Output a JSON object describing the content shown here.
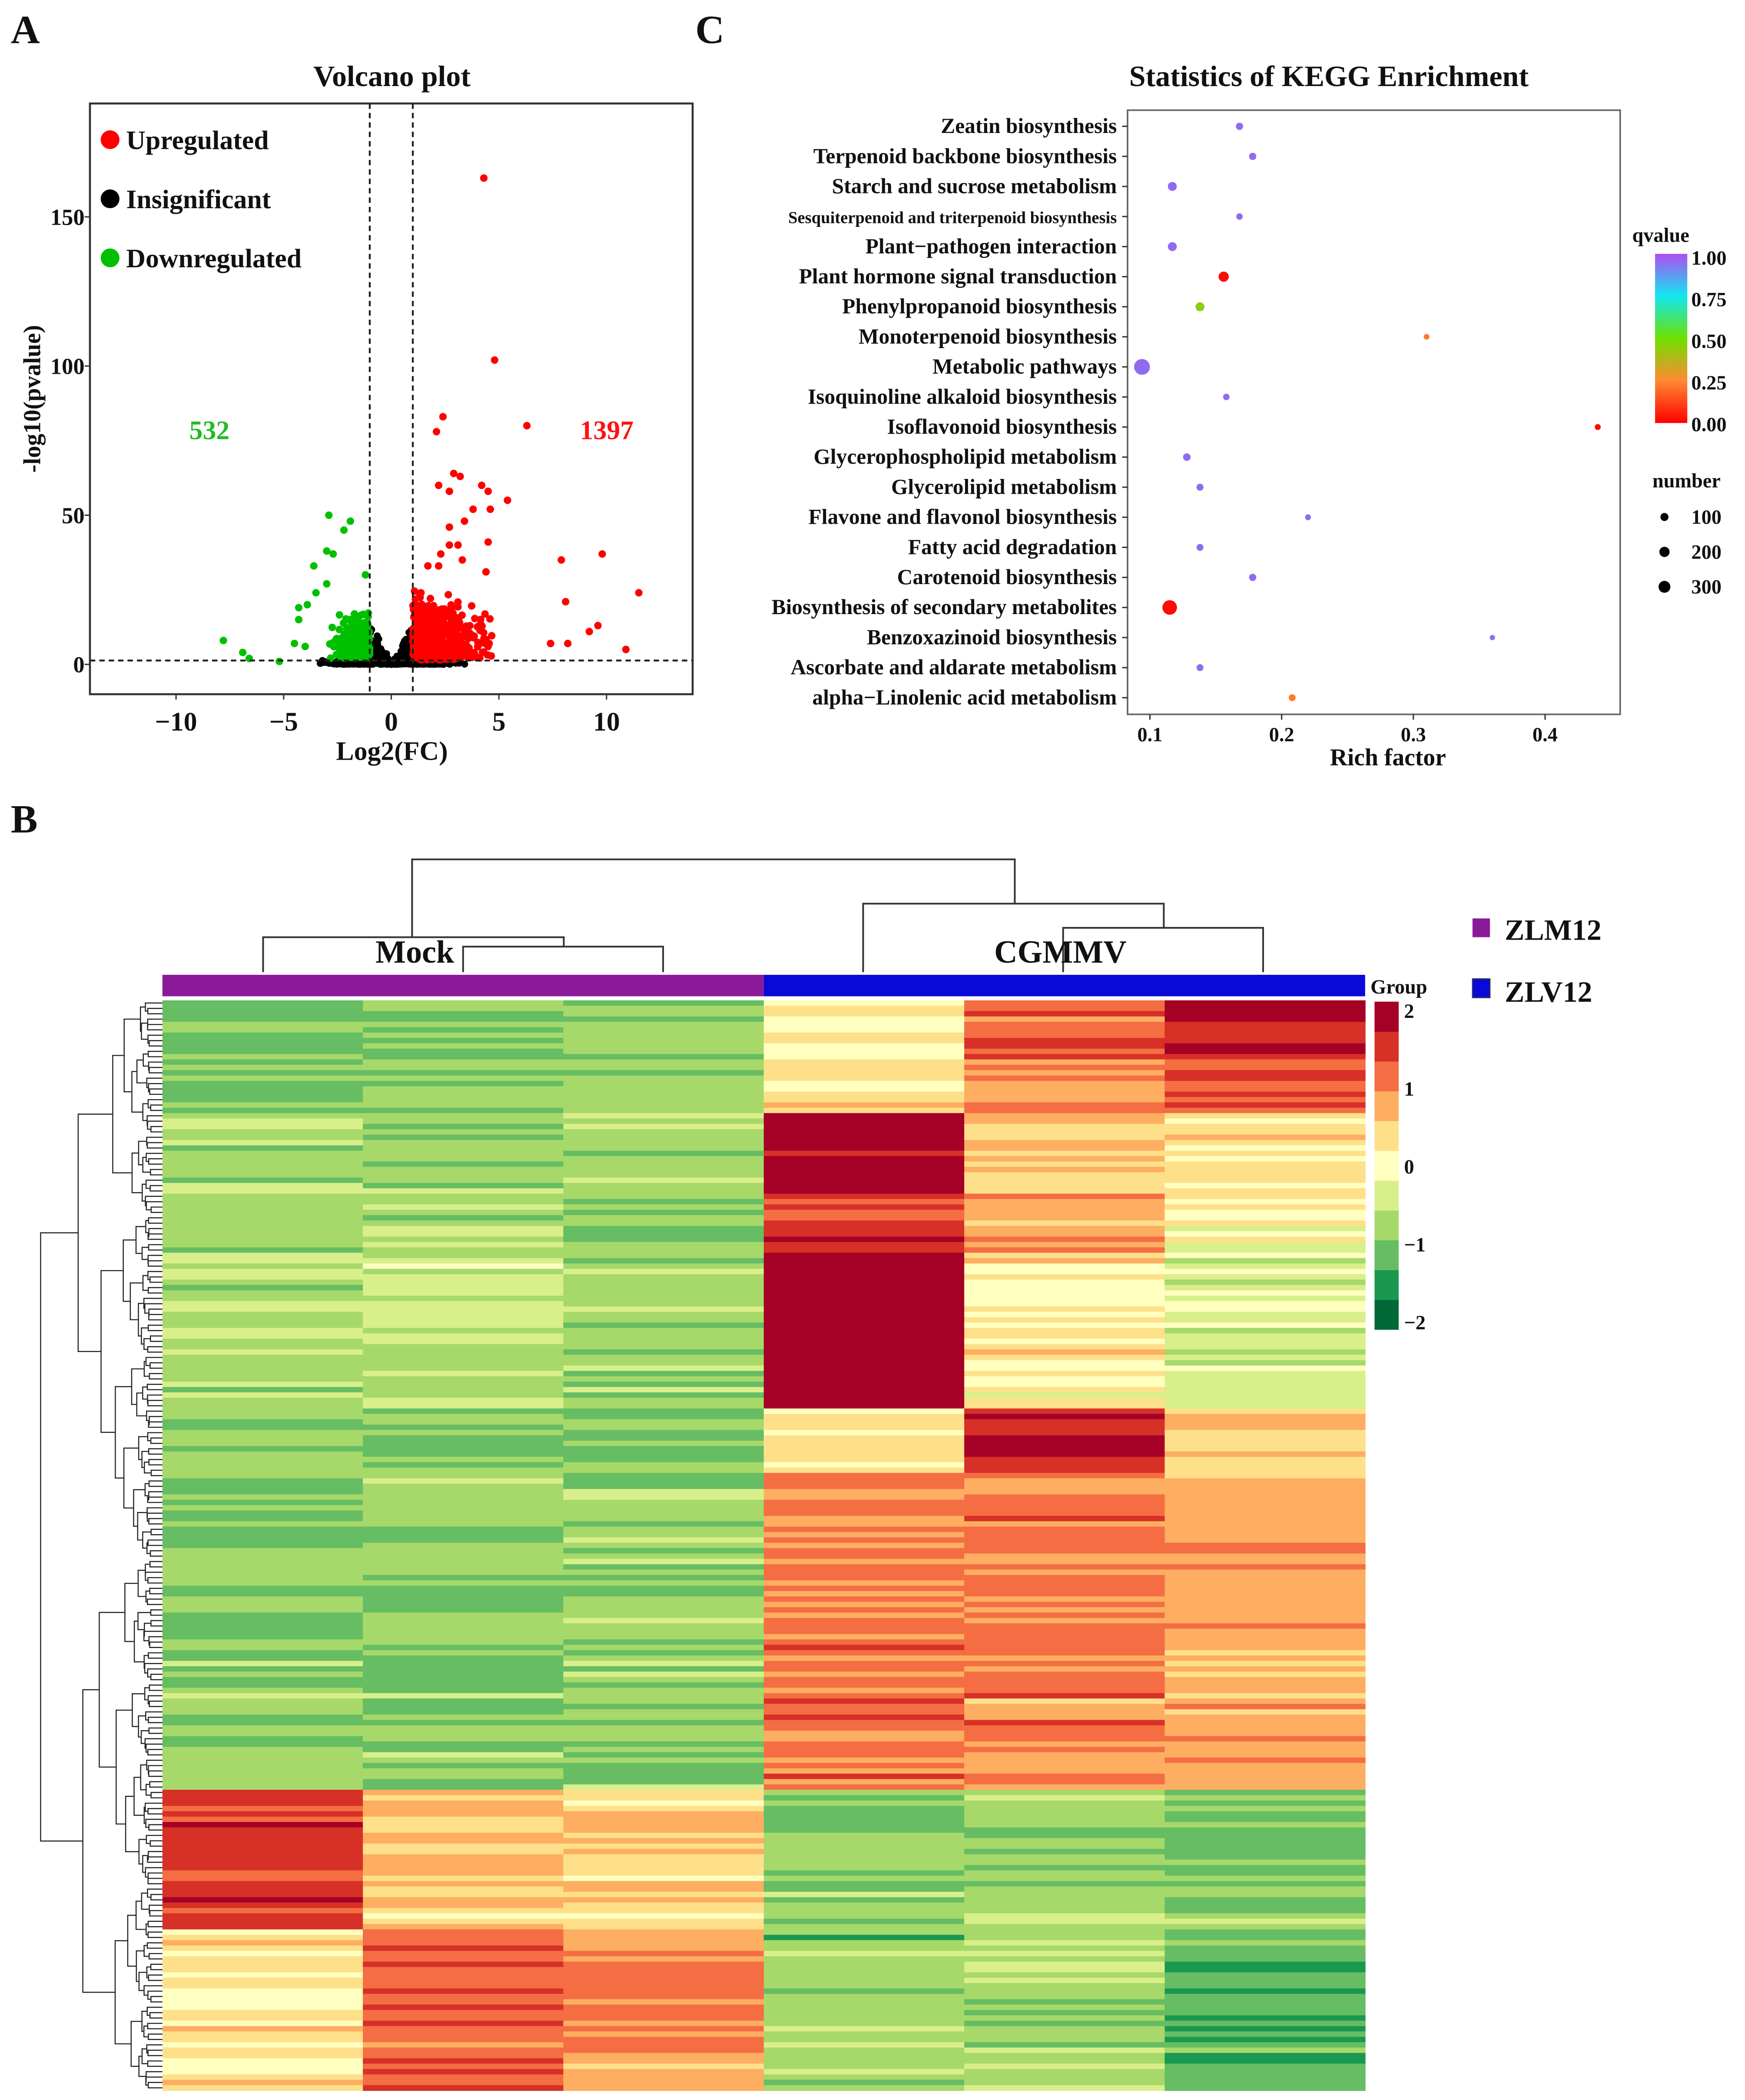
{
  "panels": {
    "a": "A",
    "b": "B",
    "c": "C"
  },
  "chart_data": [
    {
      "type": "scatter",
      "title": "Volcano plot",
      "xlabel": "Log2(FC)",
      "ylabel": "-log10(pvalue)",
      "xlim": [
        -14,
        14
      ],
      "ylim": [
        -10,
        188
      ],
      "xticks": [
        -10,
        -5,
        0,
        5,
        10
      ],
      "xtick_labels": [
        "−10",
        "−5",
        "0",
        "5",
        "10"
      ],
      "yticks": [
        0,
        50,
        100,
        150
      ],
      "ytick_labels": [
        "0",
        "50",
        "100",
        "150"
      ],
      "thresholds": {
        "log2fc": [
          -1,
          1
        ],
        "neglog10p": 1.3
      },
      "legend": {
        "placement": "top-left",
        "entries": [
          {
            "label": "Upregulated",
            "color": "#ff0000"
          },
          {
            "label": "Insignificant",
            "color": "#000000"
          },
          {
            "label": "Downregulated",
            "color": "#00c000"
          }
        ]
      },
      "counts": {
        "down": "532",
        "up": "1397",
        "down_color": "#22bb22",
        "up_color": "#ff1111"
      },
      "notable_points": {
        "up": [
          [
            4.3,
            163
          ],
          [
            4.8,
            102
          ],
          [
            2.4,
            83
          ],
          [
            2.1,
            78
          ],
          [
            6.3,
            80
          ],
          [
            2.9,
            64
          ],
          [
            3.2,
            63
          ],
          [
            2.2,
            60
          ],
          [
            2.7,
            58
          ],
          [
            4.2,
            60
          ],
          [
            4.5,
            58
          ],
          [
            5.4,
            55
          ],
          [
            3.8,
            52
          ],
          [
            4.6,
            52
          ],
          [
            3.4,
            48
          ],
          [
            2.7,
            46
          ],
          [
            4.5,
            41
          ],
          [
            2.7,
            40
          ],
          [
            3.1,
            40
          ],
          [
            9.8,
            37
          ],
          [
            7.9,
            35
          ],
          [
            2.3,
            37
          ],
          [
            3.3,
            35
          ],
          [
            1.7,
            33
          ],
          [
            2.2,
            33
          ],
          [
            4.4,
            31
          ],
          [
            11.5,
            24
          ],
          [
            8.1,
            21
          ],
          [
            10.9,
            5
          ],
          [
            9.2,
            11
          ],
          [
            9.6,
            13
          ],
          [
            7.4,
            7
          ],
          [
            8.2,
            7
          ]
        ],
        "down": [
          [
            -2.9,
            50
          ],
          [
            -1.9,
            48
          ],
          [
            -2.2,
            45
          ],
          [
            -3.0,
            38
          ],
          [
            -2.7,
            37
          ],
          [
            -3.6,
            33
          ],
          [
            -3.0,
            27
          ],
          [
            -1.2,
            30
          ],
          [
            -3.5,
            24
          ],
          [
            -4.3,
            19
          ],
          [
            -3.9,
            20
          ],
          [
            -4.3,
            15
          ],
          [
            -7.8,
            8
          ],
          [
            -6.9,
            4
          ],
          [
            -6.6,
            2
          ],
          [
            -5.2,
            1
          ],
          [
            -4.5,
            7
          ],
          [
            -4.0,
            6
          ]
        ]
      }
    },
    {
      "type": "scatter",
      "title": "Statistics of KEGG Enrichment",
      "xlabel": "Rich factor",
      "xlim": [
        0.083,
        0.457
      ],
      "xticks": [
        0.1,
        0.2,
        0.3,
        0.4
      ],
      "xtick_labels": [
        "0.1",
        "0.2",
        "0.3",
        "0.4"
      ],
      "color_legend": {
        "title": "qvalue",
        "labels": [
          "1.00",
          "0.75",
          "0.50",
          "0.25",
          "0.00"
        ]
      },
      "size_legend": {
        "title": "number",
        "labels": [
          "100",
          "200",
          "300"
        ],
        "values": [
          100,
          200,
          300
        ]
      },
      "pathways": [
        {
          "name": "Zeatin biosynthesis",
          "rich": 0.168,
          "q": 0.95,
          "n": 25
        },
        {
          "name": "Terpenoid backbone biosynthesis",
          "rich": 0.178,
          "q": 0.95,
          "n": 25
        },
        {
          "name": "Starch and sucrose metabolism",
          "rich": 0.117,
          "q": 0.95,
          "n": 55
        },
        {
          "name": "Sesquiterpenoid and triterpenoid biosynthesis",
          "rich": 0.168,
          "q": 0.95,
          "n": 15
        },
        {
          "name": "Plant−pathogen interaction",
          "rich": 0.117,
          "q": 0.95,
          "n": 55
        },
        {
          "name": "Plant hormone signal transduction",
          "rich": 0.156,
          "q": 0.02,
          "n": 85
        },
        {
          "name": "Phenylpropanoid biosynthesis",
          "rich": 0.138,
          "q": 0.45,
          "n": 55
        },
        {
          "name": "Monoterpenoid biosynthesis",
          "rich": 0.31,
          "q": 0.22,
          "n": 8
        },
        {
          "name": "Metabolic pathways",
          "rich": 0.094,
          "q": 0.95,
          "n": 300
        },
        {
          "name": "Isoquinoline alkaloid biosynthesis",
          "rich": 0.158,
          "q": 0.95,
          "n": 15
        },
        {
          "name": "Isoflavonoid biosynthesis",
          "rich": 0.44,
          "q": 0.02,
          "n": 10
        },
        {
          "name": "Glycerophospholipid metabolism",
          "rich": 0.128,
          "q": 0.95,
          "n": 30
        },
        {
          "name": "Glycerolipid metabolism",
          "rich": 0.138,
          "q": 0.95,
          "n": 22
        },
        {
          "name": "Flavone and flavonol biosynthesis",
          "rich": 0.22,
          "q": 0.95,
          "n": 10
        },
        {
          "name": "Fatty acid degradation",
          "rich": 0.138,
          "q": 0.95,
          "n": 20
        },
        {
          "name": "Carotenoid biosynthesis",
          "rich": 0.178,
          "q": 0.95,
          "n": 25
        },
        {
          "name": "Biosynthesis of secondary metabolites",
          "rich": 0.115,
          "q": 0.02,
          "n": 240
        },
        {
          "name": "Benzoxazinoid biosynthesis",
          "rich": 0.36,
          "q": 0.95,
          "n": 5
        },
        {
          "name": "Ascorbate and aldarate metabolism",
          "rich": 0.138,
          "q": 0.95,
          "n": 20
        },
        {
          "name": "alpha−Linolenic acid metabolism",
          "rich": 0.208,
          "q": 0.22,
          "n": 20
        }
      ]
    },
    {
      "type": "heatmap",
      "groups": [
        {
          "label": "Mock",
          "color": "#8b1a9a"
        },
        {
          "label": "CGMMV",
          "color": "#0a0ad8"
        }
      ],
      "group_legend_title": "Group",
      "legend": [
        {
          "label": "ZLM12",
          "color": "#8b1a9a"
        },
        {
          "label": "ZLV12",
          "color": "#0a0ad8"
        }
      ],
      "colorbar_labels": [
        "2",
        "1",
        "0",
        "−1",
        "−2"
      ],
      "value_range": [
        -2,
        2
      ],
      "columns": 6,
      "row_blocks": [
        {
          "rows": 11,
          "means": [
            -1.0,
            -0.9,
            -0.9,
            0.3,
            1.2,
            1.8
          ]
        },
        {
          "rows": 10,
          "means": [
            -1.0,
            -0.9,
            -0.9,
            0.5,
            1.0,
            1.3
          ]
        },
        {
          "rows": 15,
          "means": [
            -0.8,
            -0.9,
            -0.8,
            2.0,
            0.6,
            0.3
          ]
        },
        {
          "rows": 11,
          "means": [
            -0.8,
            -0.7,
            -0.8,
            1.6,
            0.9,
            0.1
          ]
        },
        {
          "rows": 29,
          "means": [
            -0.7,
            -0.5,
            -0.8,
            2.2,
            0.2,
            -0.4
          ]
        },
        {
          "rows": 12,
          "means": [
            -1.0,
            -0.9,
            -1.0,
            0.3,
            1.9,
            0.5
          ]
        },
        {
          "rows": 59,
          "means": [
            -1.0,
            -0.9,
            -0.9,
            1.1,
            1.1,
            0.8
          ]
        },
        {
          "rows": 26,
          "means": [
            1.6,
            0.6,
            0.5,
            -1.0,
            -1.0,
            -1.0
          ]
        },
        {
          "rows": 30,
          "means": [
            0.3,
            1.3,
            1.0,
            -0.9,
            -0.8,
            -1.2
          ]
        }
      ]
    }
  ]
}
